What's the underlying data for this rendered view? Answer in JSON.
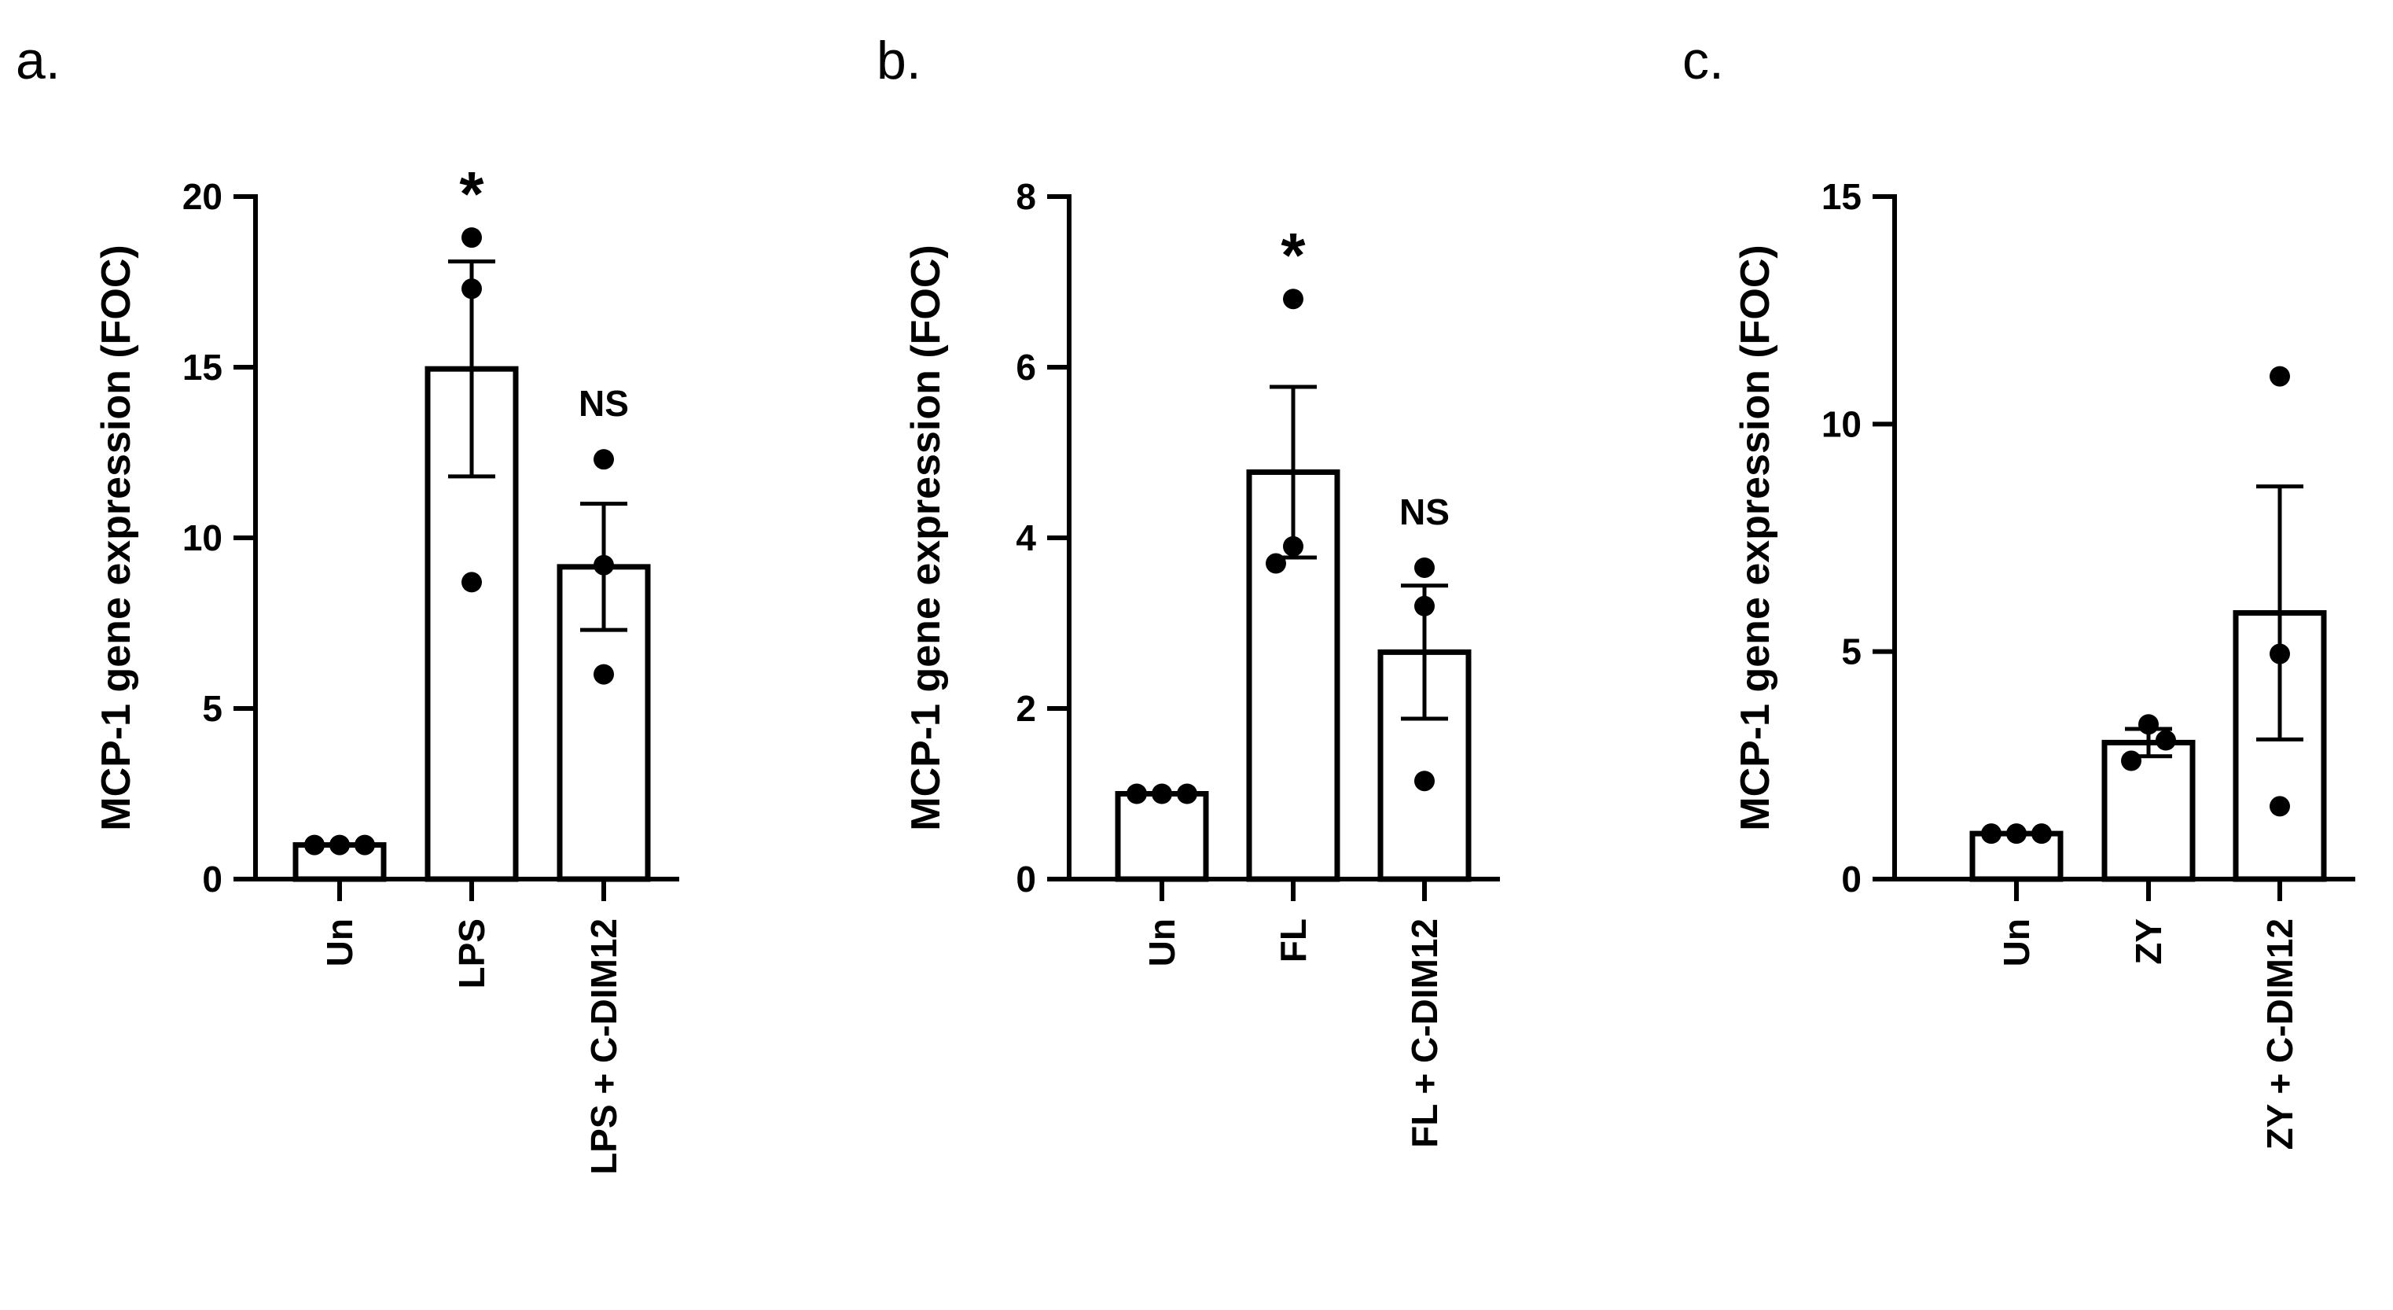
{
  "chart_data": [
    {
      "type": "bar",
      "panel": "a.",
      "ylabel": "MCP-1 gene expression (FOC)",
      "ylim": [
        0,
        20
      ],
      "yticks": [
        0,
        5,
        10,
        15,
        20
      ],
      "categories": [
        "Un",
        "LPS",
        "LPS + C-DIM12"
      ],
      "values": [
        1.0,
        14.95,
        9.15
      ],
      "errors": [
        0.03,
        3.15,
        1.85
      ],
      "points": [
        [
          1.0,
          1.0,
          1.0
        ],
        [
          8.7,
          17.3,
          18.8
        ],
        [
          6.0,
          9.2,
          12.3
        ]
      ],
      "annotations": [
        "",
        "*",
        "NS"
      ]
    },
    {
      "type": "bar",
      "panel": "b.",
      "ylabel": "MCP-1 gene expression (FOC)",
      "ylim": [
        0,
        8
      ],
      "yticks": [
        0,
        2,
        4,
        6,
        8
      ],
      "categories": [
        "Un",
        "FL",
        "FL + C-DIM12"
      ],
      "values": [
        1.0,
        4.77,
        2.66
      ],
      "errors": [
        0.02,
        1.0,
        0.78
      ],
      "points": [
        [
          1.0,
          1.0,
          1.0
        ],
        [
          3.7,
          3.9,
          6.8
        ],
        [
          1.15,
          3.2,
          3.65
        ]
      ],
      "annotations": [
        "",
        "*",
        "NS"
      ]
    },
    {
      "type": "bar",
      "panel": "c.",
      "ylabel": "MCP-1 gene expression (FOC)",
      "ylim": [
        0,
        15
      ],
      "yticks": [
        0,
        5,
        10,
        15
      ],
      "categories": [
        "Un",
        "ZY",
        "ZY + C-DIM12"
      ],
      "values": [
        1.0,
        3.0,
        5.85
      ],
      "errors": [
        0.02,
        0.3,
        2.78
      ],
      "points": [
        [
          1.0,
          1.0,
          1.0
        ],
        [
          2.6,
          3.05,
          3.4
        ],
        [
          1.6,
          4.95,
          11.05
        ]
      ],
      "annotations": [
        "",
        "",
        ""
      ]
    }
  ]
}
